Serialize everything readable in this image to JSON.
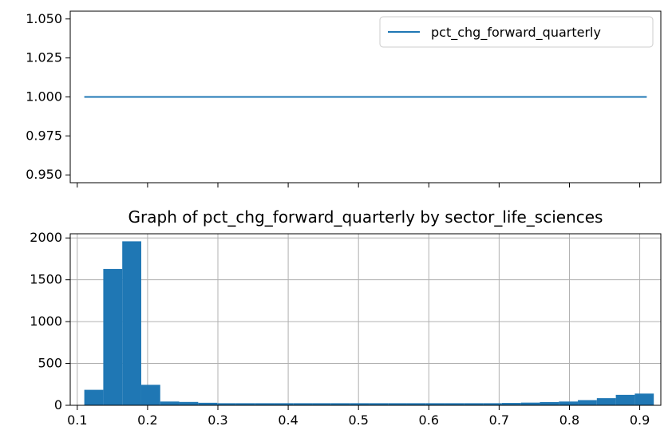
{
  "chart_data": [
    {
      "type": "line",
      "legend_position": "upper-right",
      "grid": false,
      "series": [
        {
          "name": "pct_chg_forward_quarterly",
          "color": "#1f77b4",
          "x": [
            0.11,
            0.91
          ],
          "y": [
            1.0,
            1.0
          ]
        }
      ],
      "xlim": [
        0.09,
        0.93
      ],
      "ylim": [
        0.945,
        1.055
      ],
      "yticks": [
        0.95,
        0.975,
        1.0,
        1.025,
        1.05
      ],
      "ytick_labels": [
        "0.950",
        "0.975",
        "1.000",
        "1.025",
        "1.050"
      ],
      "xticks": [
        0.1,
        0.2,
        0.3,
        0.4,
        0.5,
        0.6,
        0.7,
        0.8,
        0.9
      ],
      "xtick_labels_shown": false
    },
    {
      "type": "bar",
      "title": "Graph of pct_chg_forward_quarterly by sector_life_sciences",
      "grid": true,
      "color": "#1f77b4",
      "bins": [
        {
          "x0": 0.11,
          "x1": 0.137,
          "count": 185
        },
        {
          "x0": 0.137,
          "x1": 0.164,
          "count": 1630
        },
        {
          "x0": 0.164,
          "x1": 0.191,
          "count": 1960
        },
        {
          "x0": 0.191,
          "x1": 0.218,
          "count": 245
        },
        {
          "x0": 0.218,
          "x1": 0.245,
          "count": 45
        },
        {
          "x0": 0.245,
          "x1": 0.272,
          "count": 40
        },
        {
          "x0": 0.272,
          "x1": 0.299,
          "count": 30
        },
        {
          "x0": 0.299,
          "x1": 0.326,
          "count": 25
        },
        {
          "x0": 0.326,
          "x1": 0.353,
          "count": 25
        },
        {
          "x0": 0.353,
          "x1": 0.38,
          "count": 25
        },
        {
          "x0": 0.38,
          "x1": 0.407,
          "count": 25
        },
        {
          "x0": 0.407,
          "x1": 0.434,
          "count": 25
        },
        {
          "x0": 0.434,
          "x1": 0.461,
          "count": 25
        },
        {
          "x0": 0.461,
          "x1": 0.488,
          "count": 25
        },
        {
          "x0": 0.488,
          "x1": 0.515,
          "count": 25
        },
        {
          "x0": 0.515,
          "x1": 0.542,
          "count": 25
        },
        {
          "x0": 0.542,
          "x1": 0.569,
          "count": 25
        },
        {
          "x0": 0.569,
          "x1": 0.596,
          "count": 25
        },
        {
          "x0": 0.596,
          "x1": 0.623,
          "count": 25
        },
        {
          "x0": 0.623,
          "x1": 0.65,
          "count": 25
        },
        {
          "x0": 0.65,
          "x1": 0.677,
          "count": 25
        },
        {
          "x0": 0.677,
          "x1": 0.704,
          "count": 25
        },
        {
          "x0": 0.704,
          "x1": 0.731,
          "count": 28
        },
        {
          "x0": 0.731,
          "x1": 0.758,
          "count": 32
        },
        {
          "x0": 0.758,
          "x1": 0.785,
          "count": 38
        },
        {
          "x0": 0.785,
          "x1": 0.812,
          "count": 45
        },
        {
          "x0": 0.812,
          "x1": 0.839,
          "count": 62
        },
        {
          "x0": 0.839,
          "x1": 0.866,
          "count": 85
        },
        {
          "x0": 0.866,
          "x1": 0.893,
          "count": 125
        },
        {
          "x0": 0.893,
          "x1": 0.92,
          "count": 140
        }
      ],
      "xlim": [
        0.09,
        0.93
      ],
      "ylim": [
        0,
        2050
      ],
      "xticks": [
        0.1,
        0.2,
        0.3,
        0.4,
        0.5,
        0.6,
        0.7,
        0.8,
        0.9
      ],
      "xtick_labels": [
        "0.1",
        "0.2",
        "0.3",
        "0.4",
        "0.5",
        "0.6",
        "0.7",
        "0.8",
        "0.9"
      ],
      "yticks": [
        0,
        500,
        1000,
        1500,
        2000
      ],
      "ytick_labels": [
        "0",
        "500",
        "1000",
        "1500",
        "2000"
      ]
    }
  ]
}
